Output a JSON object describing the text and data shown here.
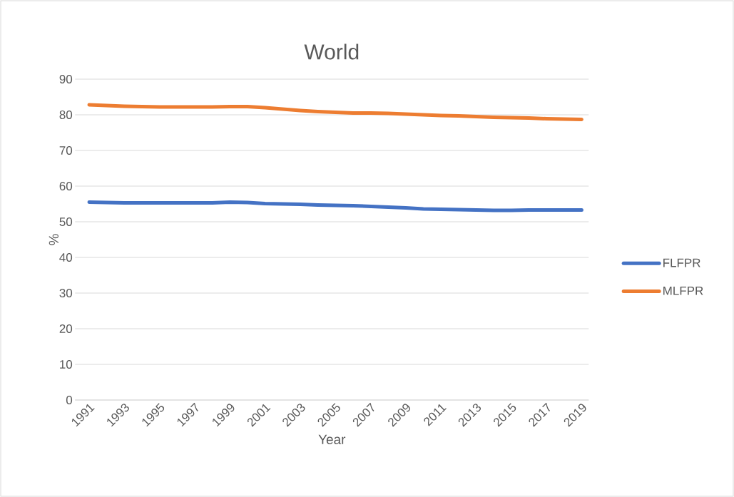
{
  "chart_data": {
    "type": "line",
    "title": "World",
    "xlabel": "Year",
    "ylabel": "%",
    "categories": [
      "1991",
      null,
      "1993",
      null,
      "1995",
      null,
      "1997",
      null,
      "1999",
      null,
      "2001",
      null,
      "2003",
      null,
      "2005",
      null,
      "2007",
      null,
      "2009",
      null,
      "2011",
      null,
      "2013",
      null,
      "2015",
      null,
      "2017",
      null,
      "2019"
    ],
    "series": [
      {
        "name": "FLFPR",
        "color": "#4472c4",
        "values": [
          55.5,
          55.4,
          55.3,
          55.3,
          55.3,
          55.3,
          55.3,
          55.3,
          55.5,
          55.4,
          55.1,
          55.0,
          54.9,
          54.7,
          54.6,
          54.5,
          54.3,
          54.1,
          53.9,
          53.6,
          53.5,
          53.4,
          53.3,
          53.2,
          53.2,
          53.3,
          53.3,
          53.3,
          53.3
        ]
      },
      {
        "name": "MLFPR",
        "color": "#ed7d31",
        "values": [
          82.8,
          82.6,
          82.4,
          82.3,
          82.2,
          82.2,
          82.2,
          82.2,
          82.3,
          82.3,
          82.0,
          81.6,
          81.2,
          80.9,
          80.7,
          80.5,
          80.5,
          80.4,
          80.2,
          80.0,
          79.8,
          79.7,
          79.5,
          79.3,
          79.2,
          79.1,
          78.9,
          78.8,
          78.7
        ]
      }
    ],
    "ylim": [
      0,
      90
    ],
    "yticks": [
      0,
      10,
      20,
      30,
      40,
      50,
      60,
      70,
      80,
      90
    ],
    "grid": "y",
    "legend": "right",
    "marker": "none",
    "line_style": "solid"
  }
}
